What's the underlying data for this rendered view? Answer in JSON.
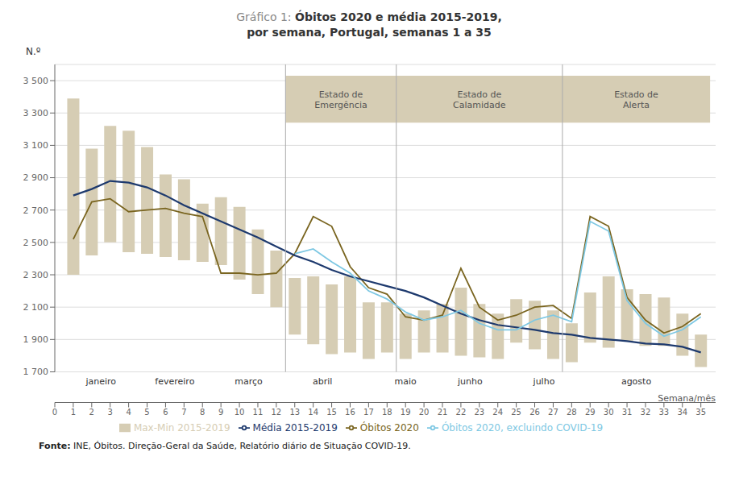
{
  "chart_data": {
    "type": "bar",
    "title": "Gráfico 1: ",
    "title_bold": "Óbitos 2020 e média 2015-2019,",
    "subtitle": "por semana, Portugal, semanas 1 a 35",
    "x_label": "Semana/mês",
    "y_label": "N.º",
    "source_bold": "Fonte:",
    "source": " INE, Óbitos. Direção-Geral da Saúde, Relatório diário de Situação COVID-19.",
    "x": [
      1,
      2,
      3,
      4,
      5,
      6,
      7,
      8,
      9,
      10,
      11,
      12,
      13,
      14,
      15,
      16,
      17,
      18,
      19,
      20,
      21,
      22,
      23,
      24,
      25,
      26,
      27,
      28,
      29,
      30,
      31,
      32,
      33,
      34,
      35
    ],
    "series": [
      {
        "name": "Max-Min 2015-2019",
        "type": "bar",
        "color": "#d6cdb4",
        "values": [
          [
            2300,
            3390
          ],
          [
            2420,
            3080
          ],
          [
            2500,
            3220
          ],
          [
            2440,
            3190
          ],
          [
            2430,
            3090
          ],
          [
            2410,
            2920
          ],
          [
            2390,
            2890
          ],
          [
            2380,
            2740
          ],
          [
            2360,
            2780
          ],
          [
            2270,
            2720
          ],
          [
            2180,
            2580
          ],
          [
            2100,
            2450
          ],
          [
            1930,
            2280
          ],
          [
            1870,
            2290
          ],
          [
            1810,
            2240
          ],
          [
            1820,
            2290
          ],
          [
            1780,
            2130
          ],
          [
            1820,
            2130
          ],
          [
            1780,
            2060
          ],
          [
            1820,
            2080
          ],
          [
            1820,
            2120
          ],
          [
            1800,
            2220
          ],
          [
            1790,
            2120
          ],
          [
            1780,
            2060
          ],
          [
            1880,
            2150
          ],
          [
            1840,
            2140
          ],
          [
            1780,
            2080
          ],
          [
            1760,
            2000
          ],
          [
            1880,
            2190
          ],
          [
            1850,
            2290
          ],
          [
            1890,
            2210
          ],
          [
            1860,
            2180
          ],
          [
            1860,
            2160
          ],
          [
            1800,
            2060
          ],
          [
            1730,
            1930
          ]
        ]
      },
      {
        "name": "Óbitos 2020",
        "type": "line",
        "color": "#7a6520",
        "values": [
          2520,
          2750,
          2770,
          2690,
          2700,
          2710,
          2680,
          2660,
          2310,
          2310,
          2300,
          2310,
          2430,
          2660,
          2600,
          2350,
          2220,
          2180,
          2040,
          2020,
          2050,
          2340,
          2100,
          2020,
          2050,
          2100,
          2110,
          2030,
          2660,
          2600,
          2160,
          2020,
          1940,
          1980,
          2060
        ]
      },
      {
        "name": "Média 2015-2019",
        "type": "line",
        "color": "#1e3a6e",
        "values": [
          2790,
          2830,
          2880,
          2870,
          2840,
          2790,
          2730,
          2680,
          2630,
          2580,
          2530,
          2475,
          2420,
          2380,
          2330,
          2290,
          2260,
          2230,
          2200,
          2160,
          2110,
          2060,
          2020,
          1990,
          1975,
          1960,
          1940,
          1930,
          1910,
          1900,
          1890,
          1875,
          1870,
          1855,
          1820
        ]
      },
      {
        "name": "Óbitos 2020, excluindo COVID-19",
        "type": "line",
        "color": "#7ec8e3",
        "values": [
          null,
          null,
          null,
          null,
          null,
          null,
          null,
          null,
          null,
          null,
          null,
          null,
          2430,
          2460,
          2380,
          2310,
          2200,
          2150,
          2070,
          2020,
          2040,
          2080,
          2000,
          1960,
          1960,
          2020,
          2050,
          2010,
          2630,
          2570,
          2140,
          2000,
          1920,
          1960,
          2040
        ]
      }
    ],
    "xlim": [
      0,
      35.8
    ],
    "xticks": [
      0,
      1,
      2,
      3,
      4,
      5,
      6,
      7,
      8,
      9,
      10,
      11,
      12,
      13,
      14,
      15,
      16,
      17,
      18,
      19,
      20,
      21,
      22,
      23,
      24,
      25,
      26,
      27,
      28,
      29,
      30,
      31,
      32,
      33,
      34,
      35
    ],
    "month_labels": [
      {
        "value": 2.5,
        "label": "janeiro"
      },
      {
        "value": 6.5,
        "label": "fevereiro"
      },
      {
        "value": 10.5,
        "label": "março"
      },
      {
        "value": 14.5,
        "label": "abril"
      },
      {
        "value": 19.0,
        "label": "maio"
      },
      {
        "value": 22.5,
        "label": "junho"
      },
      {
        "value": 26.5,
        "label": "julho"
      },
      {
        "value": 31.5,
        "label": "agosto"
      }
    ],
    "ylim": [
      1700,
      3600
    ],
    "yticks": [
      {
        "value": 1700,
        "label": "1 700"
      },
      {
        "value": 1900,
        "label": "1 900"
      },
      {
        "value": 2100,
        "label": "2 100"
      },
      {
        "value": 2300,
        "label": "2 300"
      },
      {
        "value": 2500,
        "label": "2 500"
      },
      {
        "value": 2700,
        "label": "2 700"
      },
      {
        "value": 2900,
        "label": "2 900"
      },
      {
        "value": 3100,
        "label": "3 100"
      },
      {
        "value": 3300,
        "label": "3 300"
      },
      {
        "value": 3500,
        "label": "3 500"
      }
    ],
    "annotations": [
      {
        "type": "vline",
        "x": 12.5,
        "color": "#aaaaaa"
      },
      {
        "type": "vline",
        "x": 18.5,
        "color": "#aaaaaa"
      },
      {
        "type": "vline",
        "x": 27.5,
        "color": "#aaaaaa"
      },
      {
        "type": "box",
        "x": [
          12.5,
          18.5
        ],
        "y": [
          3240,
          3530
        ],
        "text": "Estado de\nEmergência",
        "color": "#d6cdb4",
        "text_color": "#555555"
      },
      {
        "type": "box",
        "x": [
          18.5,
          27.5
        ],
        "y": [
          3240,
          3530
        ],
        "text": "Estado de\nCalamidade",
        "color": "#d6cdb4",
        "text_color": "#555555"
      },
      {
        "type": "box",
        "x": [
          27.5,
          35.5
        ],
        "y": [
          3240,
          3530
        ],
        "text": "Estado de\nAlerta",
        "color": "#d6cdb4",
        "text_color": "#555555"
      }
    ],
    "grid": true,
    "legend": "bottom"
  }
}
